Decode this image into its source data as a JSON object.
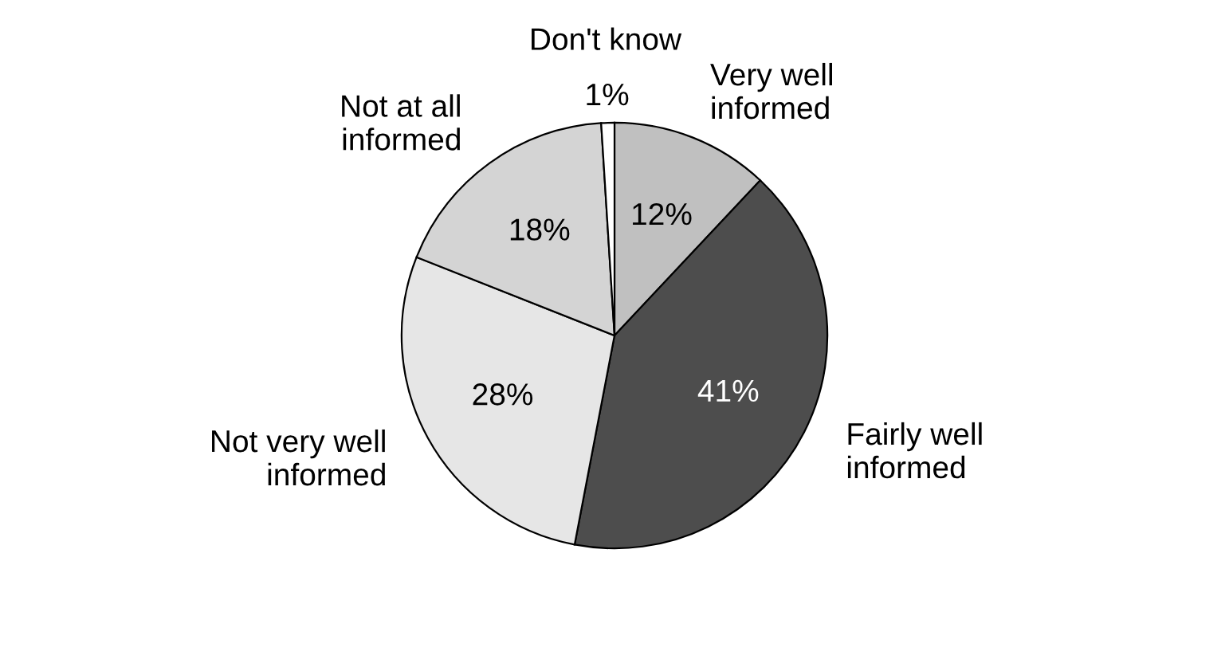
{
  "chart_data": {
    "type": "pie",
    "categories": [
      "Very well\ninformed",
      "Fairly well\ninformed",
      "Not very well\ninformed",
      "Not at all\ninformed",
      "Don't know"
    ],
    "values": [
      12,
      41,
      28,
      18,
      1
    ],
    "colors": [
      "#c0c0c0",
      "#4d4d4d",
      "#e6e6e6",
      "#d4d4d4",
      "#ffffff"
    ],
    "value_labels": [
      "12%",
      "41%",
      "28%",
      "18%",
      "1%"
    ],
    "legend": false
  }
}
